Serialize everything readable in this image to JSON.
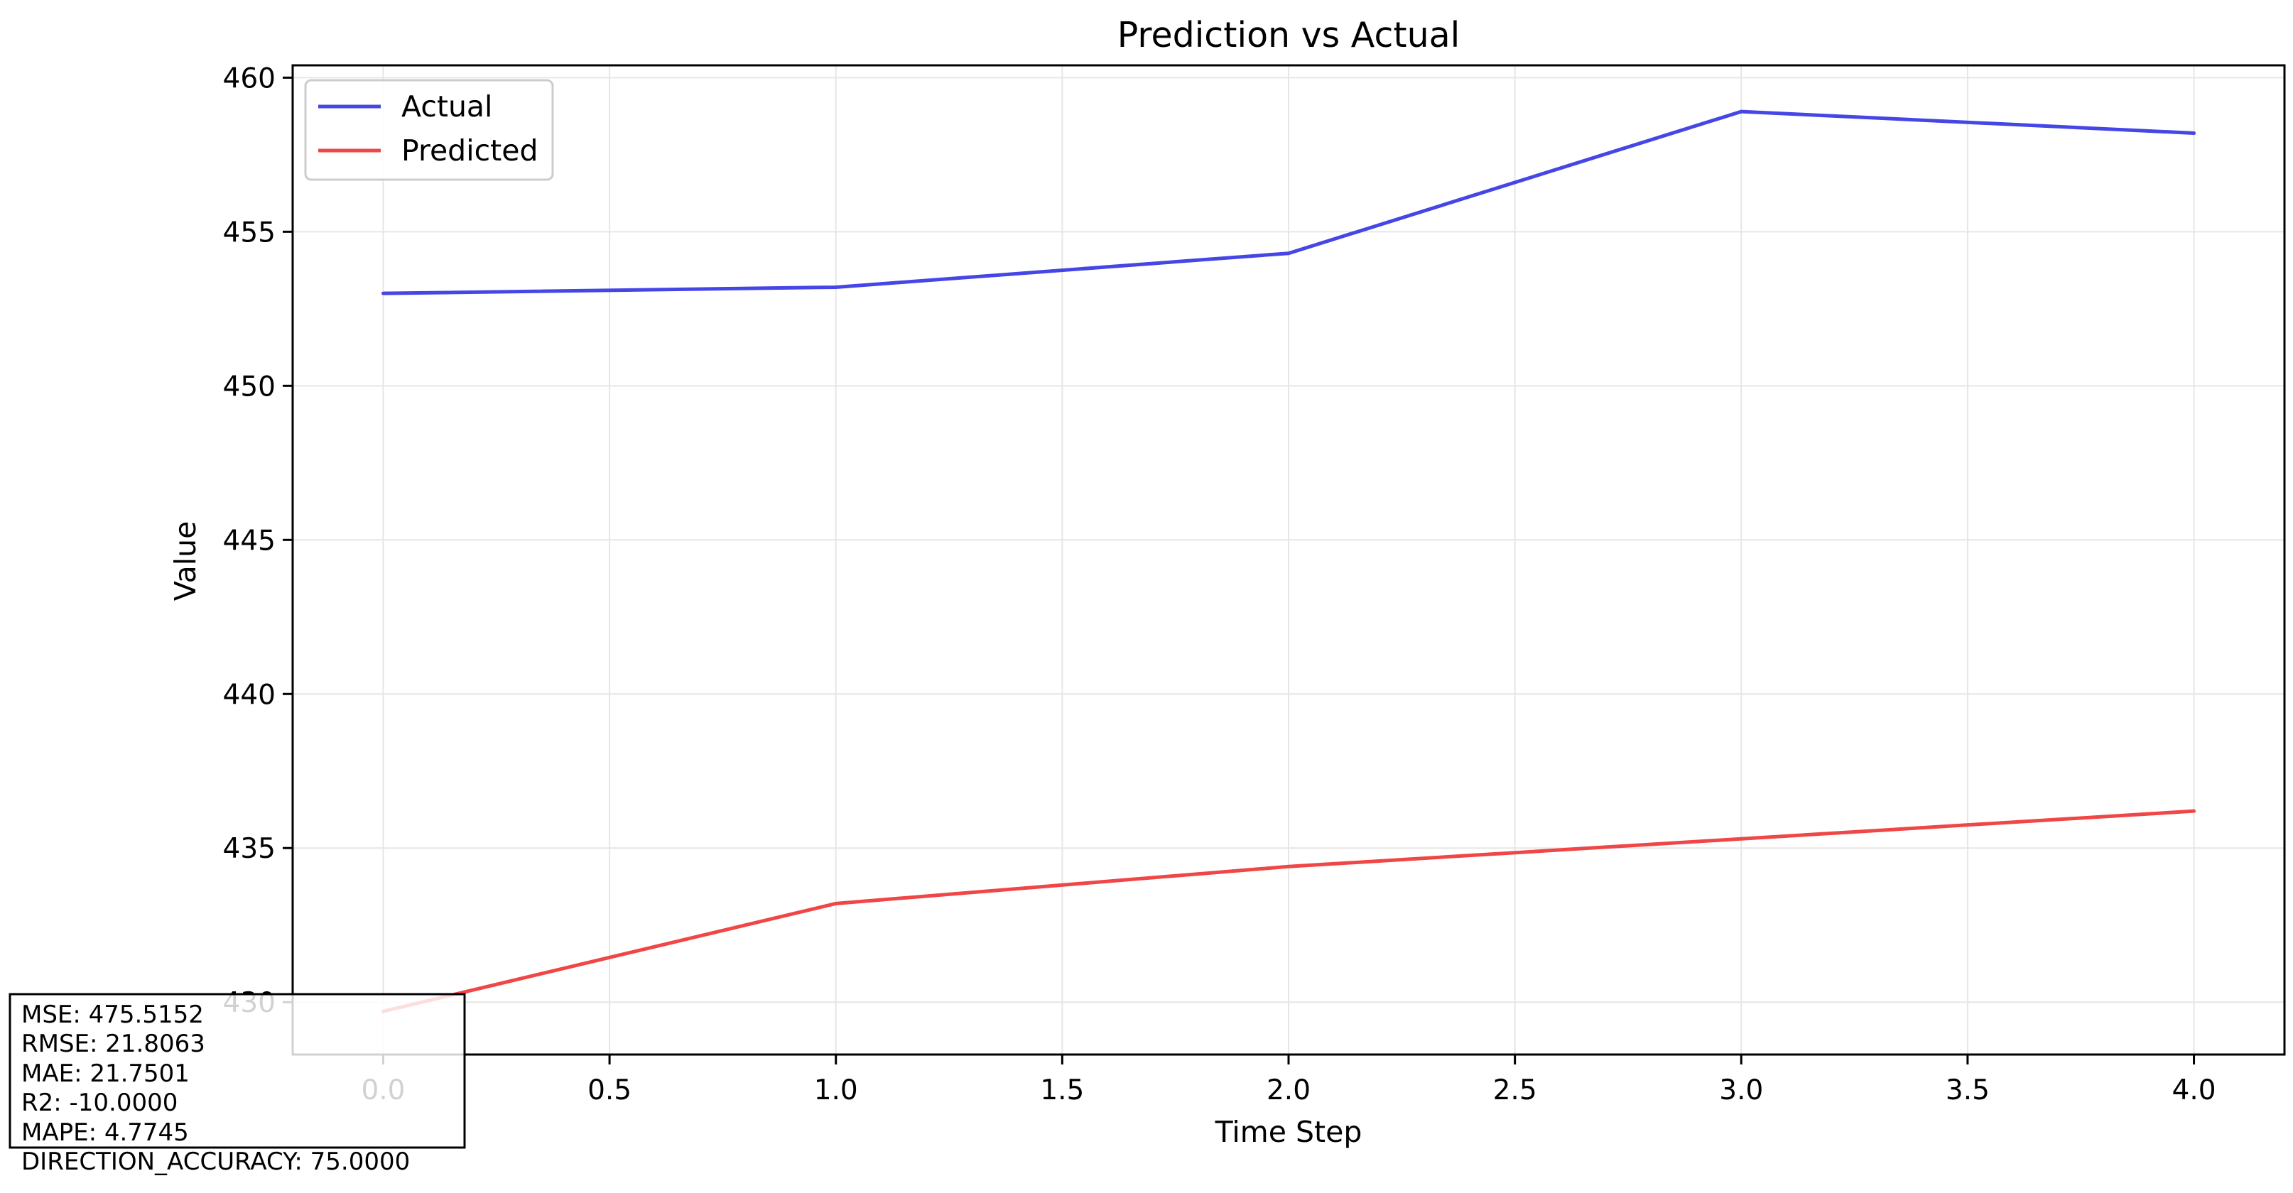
{
  "chart_data": {
    "type": "line",
    "title": "Prediction vs Actual",
    "xlabel": "Time Step",
    "ylabel": "Value",
    "x": [
      0,
      1,
      2,
      3,
      4
    ],
    "xlim": [
      -0.2,
      4.2
    ],
    "ylim": [
      428.3,
      460.4
    ],
    "x_ticks": [
      "0.0",
      "0.5",
      "1.0",
      "1.5",
      "2.0",
      "2.5",
      "3.0",
      "3.5",
      "4.0"
    ],
    "x_tick_values": [
      0,
      0.5,
      1,
      1.5,
      2,
      2.5,
      3,
      3.5,
      4
    ],
    "y_ticks": [
      "430",
      "435",
      "440",
      "445",
      "450",
      "455",
      "460"
    ],
    "y_tick_values": [
      430,
      435,
      440,
      445,
      450,
      455,
      460
    ],
    "grid": true,
    "legend_position": "top-left",
    "series": [
      {
        "name": "Actual",
        "color": "#4646e6",
        "values": [
          453.0,
          453.2,
          454.3,
          458.9,
          458.2
        ]
      },
      {
        "name": "Predicted",
        "color": "#f04646",
        "values": [
          429.7,
          433.2,
          434.4,
          435.3,
          436.2
        ]
      }
    ]
  },
  "metrics": {
    "lines": [
      "MSE: 475.5152",
      "RMSE: 21.8063",
      "MAE: 21.7501",
      "R2: -10.0000",
      "MAPE: 4.7745",
      "DIRECTION_ACCURACY: 75.0000"
    ]
  }
}
